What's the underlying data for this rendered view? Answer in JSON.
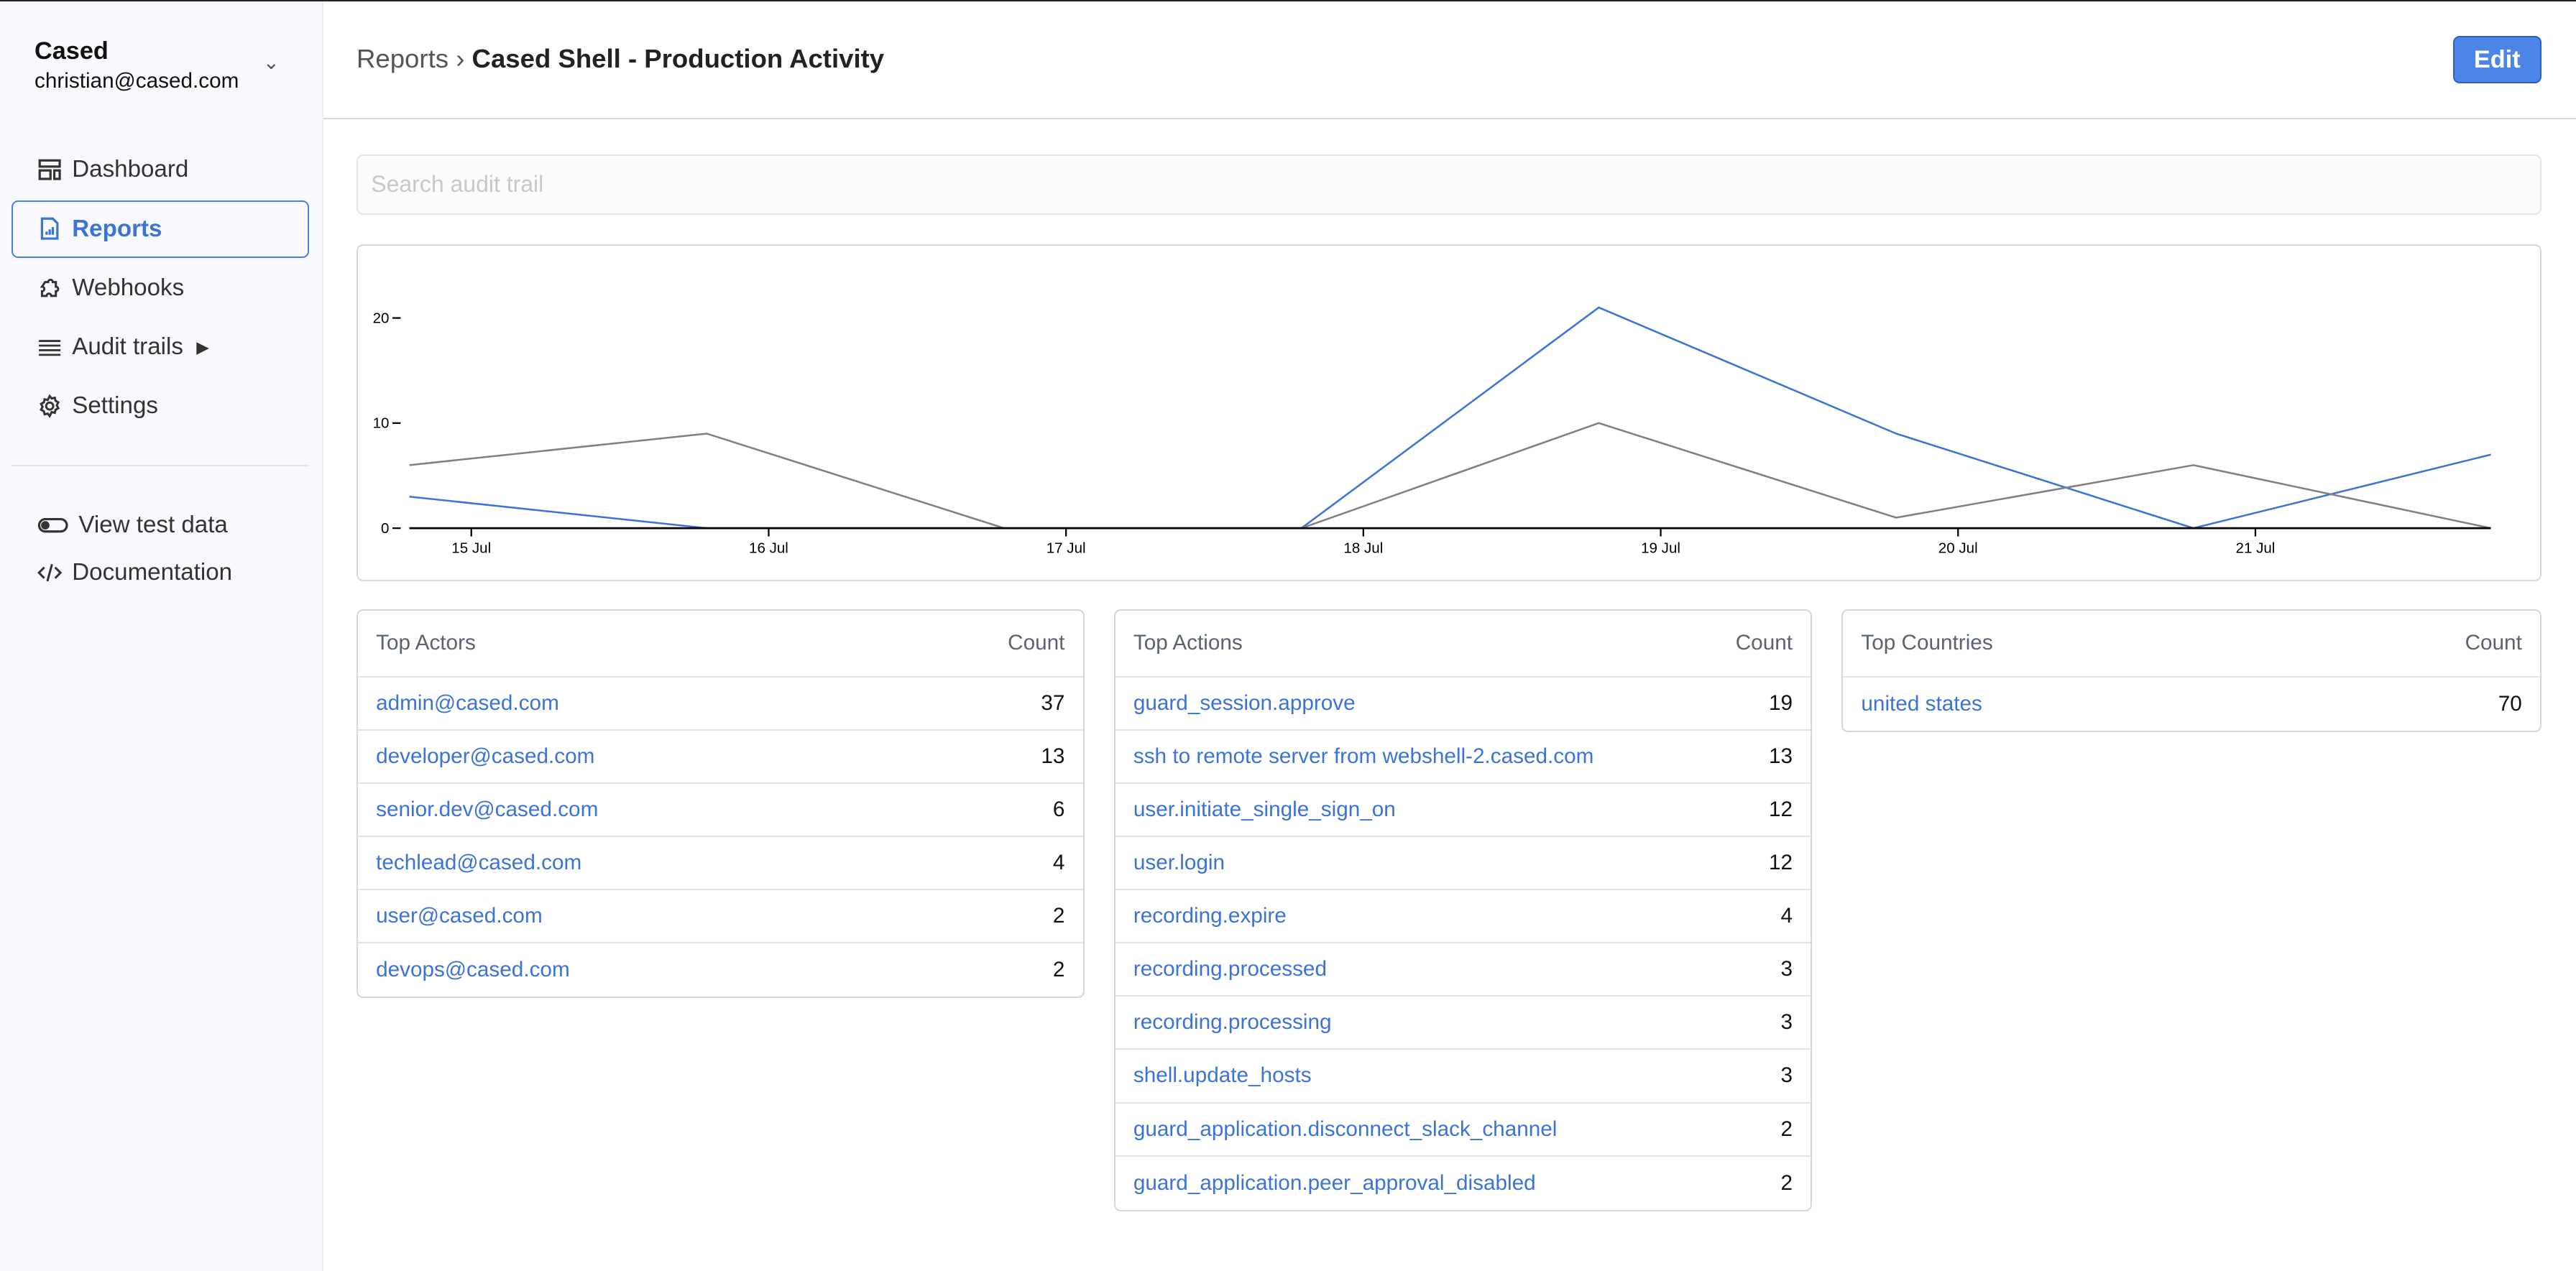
{
  "account": {
    "org": "Cased",
    "email": "christian@cased.com"
  },
  "sidebar": {
    "items": [
      {
        "label": "Dashboard",
        "icon": "dashboard-icon"
      },
      {
        "label": "Reports",
        "icon": "report-icon",
        "active": true
      },
      {
        "label": "Webhooks",
        "icon": "puzzle-icon"
      },
      {
        "label": "Audit trails",
        "icon": "list-icon"
      },
      {
        "label": "Settings",
        "icon": "gear-icon"
      }
    ],
    "secondary": [
      {
        "label": "View test data",
        "icon": "toggle-icon"
      },
      {
        "label": "Documentation",
        "icon": "code-icon"
      }
    ]
  },
  "header": {
    "breadcrumb_parent": "Reports",
    "separator": "›",
    "title": "Cased Shell - Production Activity",
    "edit_label": "Edit"
  },
  "search": {
    "placeholder": "Search audit trail",
    "value": ""
  },
  "colors": {
    "accent": "#4d84e8",
    "link": "#3b73d9",
    "series_blue": "#3b73d9",
    "series_gray": "#808080"
  },
  "chart_data": {
    "type": "line",
    "x": [
      "14 Jul 19:00",
      "15 Jul 19:00",
      "16 Jul 19:00",
      "17 Jul 19:00",
      "18 Jul 19:00",
      "19 Jul 19:00",
      "20 Jul 19:00",
      "21 Jul 19:00"
    ],
    "series": [
      {
        "color": "#3b73d9",
        "values": [
          3,
          0,
          0,
          0,
          21,
          9,
          0,
          7
        ]
      },
      {
        "color": "#808080",
        "values": [
          6,
          9,
          0,
          0,
          10,
          1,
          6,
          0
        ]
      }
    ],
    "x_ticks": [
      "15 Jul",
      "16 Jul",
      "17 Jul",
      "18 Jul",
      "19 Jul",
      "20 Jul",
      "21 Jul"
    ],
    "y_ticks": [
      "0",
      "10",
      "20"
    ],
    "ylim": [
      0,
      25
    ],
    "grid": false
  },
  "top_actors": {
    "header": "Top Actors",
    "count_header": "Count",
    "rows": [
      {
        "name": "admin@cased.com",
        "count": "37"
      },
      {
        "name": "developer@cased.com",
        "count": "13"
      },
      {
        "name": "senior.dev@cased.com",
        "count": "6"
      },
      {
        "name": "techlead@cased.com",
        "count": "4"
      },
      {
        "name": "user@cased.com",
        "count": "2"
      },
      {
        "name": "devops@cased.com",
        "count": "2"
      }
    ]
  },
  "top_actions": {
    "header": "Top Actions",
    "count_header": "Count",
    "rows": [
      {
        "name": "guard_session.approve",
        "count": "19"
      },
      {
        "name": "ssh to remote server from webshell-2.cased.com",
        "count": "13"
      },
      {
        "name": "user.initiate_single_sign_on",
        "count": "12"
      },
      {
        "name": "user.login",
        "count": "12"
      },
      {
        "name": "recording.expire",
        "count": "4"
      },
      {
        "name": "recording.processed",
        "count": "3"
      },
      {
        "name": "recording.processing",
        "count": "3"
      },
      {
        "name": "shell.update_hosts",
        "count": "3"
      },
      {
        "name": "guard_application.disconnect_slack_channel",
        "count": "2"
      },
      {
        "name": "guard_application.peer_approval_disabled",
        "count": "2"
      }
    ]
  },
  "top_countries": {
    "header": "Top Countries",
    "count_header": "Count",
    "rows": [
      {
        "name": "united states",
        "count": "70"
      }
    ]
  }
}
